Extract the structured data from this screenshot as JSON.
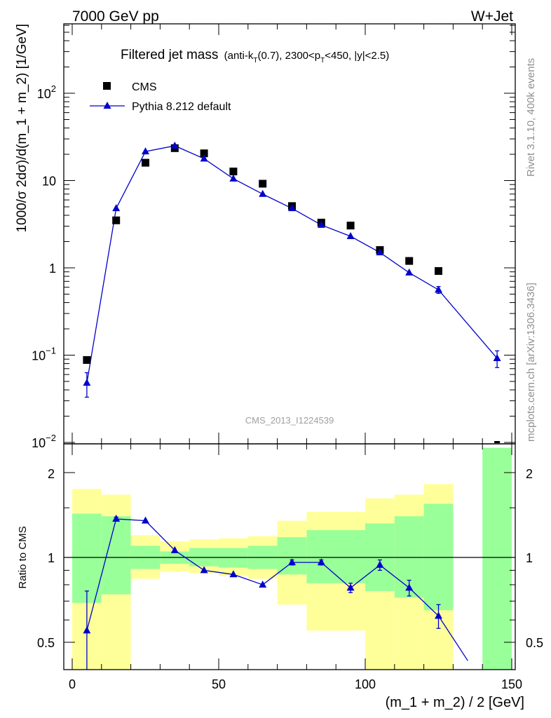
{
  "header": {
    "left": "7000 GeV pp",
    "right": "W+Jet"
  },
  "side_labels": {
    "rivet": "Rivet 3.1.10,  400k events",
    "mcplots": "mcplots.cern.ch [arXiv:1306.3436]"
  },
  "main_panel": {
    "title_main": "Filtered jet mass",
    "title_sub": "(anti-k",
    "title_sub_T1": "T",
    "title_sub_mid": "(0.7), 2300<p",
    "title_sub_T2": "T",
    "title_sub_end": "<450, |y|<2.5)",
    "ylabel": "1000/σ 2dσ)/d(m_1 + m_2) [1/GeV]",
    "watermark": "CMS_2013_I1224539",
    "legend": {
      "data_label": "CMS",
      "mc_label": "Pythia 8.212 default"
    },
    "ytick_labels": [
      {
        "v": 0.01,
        "base": "10",
        "exp": "−2"
      },
      {
        "v": 0.1,
        "base": "10",
        "exp": "−1"
      },
      {
        "v": 1,
        "base": "1",
        "exp": ""
      },
      {
        "v": 10,
        "base": "10",
        "exp": ""
      },
      {
        "v": 100,
        "base": "10",
        "exp": "2"
      }
    ]
  },
  "ratio_panel": {
    "ylabel": "Ratio to CMS",
    "ytick_labels": [
      "0.5",
      "1",
      "2"
    ]
  },
  "xaxis": {
    "label": "(m_1 + m_2) / 2 [GeV]",
    "tick_labels": [
      "0",
      "50",
      "100",
      "150"
    ]
  },
  "colors": {
    "mc": "#0000cc",
    "data": "#000000",
    "band_inner": "#99ff99",
    "band_outer": "#ffff99"
  },
  "chart_data": {
    "type": "line",
    "x_range": [
      -5,
      150
    ],
    "main": {
      "yscale": "log",
      "ylim": [
        0.01,
        800
      ],
      "data": {
        "name": "CMS",
        "x": [
          5,
          15,
          25,
          35,
          45,
          55,
          65,
          75,
          85,
          95,
          105,
          115,
          125
        ],
        "y": [
          0.088,
          3.5,
          16,
          23.5,
          20.5,
          12.7,
          9.2,
          5.1,
          3.3,
          3.05,
          1.6,
          1.2,
          0.92
        ]
      },
      "mc": {
        "name": "Pythia 8.212 default",
        "x": [
          5,
          15,
          25,
          35,
          45,
          55,
          65,
          75,
          85,
          95,
          105,
          115,
          125,
          145
        ],
        "y": [
          0.048,
          4.8,
          21.5,
          25,
          17.8,
          10.5,
          7.0,
          4.8,
          3.1,
          2.3,
          1.5,
          0.88,
          0.56,
          0.092
        ],
        "err_lo": [
          0.015,
          0,
          0,
          0,
          0,
          0,
          0,
          0,
          0,
          0,
          0,
          0,
          0.05,
          0.02
        ],
        "err_hi": [
          0.015,
          0,
          0,
          0,
          0,
          0,
          0,
          0,
          0,
          0,
          0,
          0,
          0.05,
          0.02
        ]
      }
    },
    "ratio": {
      "yscale": "log",
      "ylim": [
        0.43,
        2.45
      ],
      "reference": 1,
      "bands": [
        {
          "x0": 0,
          "x1": 10,
          "outer": [
            0.38,
            1.75
          ],
          "inner": [
            0.69,
            1.43
          ]
        },
        {
          "x0": 10,
          "x1": 20,
          "outer": [
            0.38,
            1.67
          ],
          "inner": [
            0.74,
            1.4
          ]
        },
        {
          "x0": 20,
          "x1": 30,
          "outer": [
            0.84,
            1.2
          ],
          "inner": [
            0.91,
            1.1
          ]
        },
        {
          "x0": 30,
          "x1": 40,
          "outer": [
            0.89,
            1.14
          ],
          "inner": [
            0.95,
            1.05
          ]
        },
        {
          "x0": 40,
          "x1": 50,
          "outer": [
            0.88,
            1.16
          ],
          "inner": [
            0.93,
            1.08
          ]
        },
        {
          "x0": 50,
          "x1": 60,
          "outer": [
            0.86,
            1.17
          ],
          "inner": [
            0.92,
            1.08
          ]
        },
        {
          "x0": 60,
          "x1": 70,
          "outer": [
            0.84,
            1.19
          ],
          "inner": [
            0.91,
            1.1
          ]
        },
        {
          "x0": 70,
          "x1": 80,
          "outer": [
            0.68,
            1.35
          ],
          "inner": [
            0.87,
            1.18
          ]
        },
        {
          "x0": 80,
          "x1": 100,
          "outer": [
            0.55,
            1.45
          ],
          "inner": [
            0.81,
            1.25
          ]
        },
        {
          "x0": 100,
          "x1": 110,
          "outer": [
            0.4,
            1.62
          ],
          "inner": [
            0.76,
            1.32
          ]
        },
        {
          "x0": 110,
          "x1": 120,
          "outer": [
            0.38,
            1.67
          ],
          "inner": [
            0.72,
            1.4
          ]
        },
        {
          "x0": 120,
          "x1": 130,
          "outer": [
            0.38,
            1.82
          ],
          "inner": [
            0.65,
            1.55
          ]
        },
        {
          "x0": 140,
          "x1": 150,
          "outer": [
            2.45,
            2.45
          ],
          "inner": [
            0.4,
            2.45
          ]
        }
      ],
      "mc_ratio": {
        "x": [
          5,
          15,
          25,
          35,
          45,
          55,
          65,
          75,
          85,
          95,
          105,
          115,
          125,
          135
        ],
        "y": [
          0.55,
          1.37,
          1.35,
          1.06,
          0.9,
          0.87,
          0.8,
          0.96,
          0.96,
          0.78,
          0.94,
          0.78,
          0.62,
          0.43
        ],
        "err": [
          0.21,
          0.02,
          0,
          0,
          0,
          0,
          0,
          0.02,
          0.02,
          0.03,
          0.04,
          0.05,
          0.06,
          0
        ]
      }
    }
  }
}
